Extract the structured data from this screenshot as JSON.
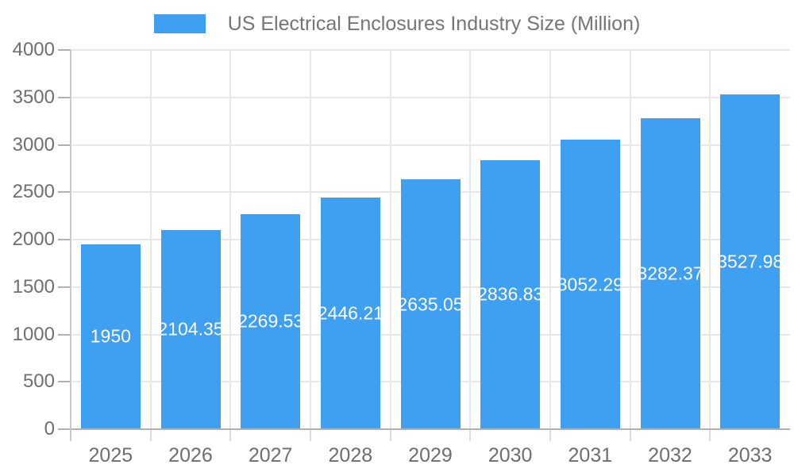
{
  "legend": {
    "series_label": "US Electrical Enclosures Industry Size (Million)"
  },
  "chart_data": {
    "type": "bar",
    "title": "US Electrical Enclosures Industry Size (Million)",
    "categories": [
      "2025",
      "2026",
      "2027",
      "2028",
      "2029",
      "2030",
      "2031",
      "2032",
      "2033"
    ],
    "values": [
      1950,
      2104.35,
      2269.53,
      2446.21,
      2635.05,
      2836.83,
      3052.29,
      3282.37,
      3527.98
    ],
    "bar_labels": [
      "1950",
      "2104.35",
      "2269.53",
      "2446.21",
      "2635.05",
      "2836.83",
      "3052.29",
      "3282.37",
      "3527.98"
    ],
    "xlabel": "",
    "ylabel": "",
    "ylim": [
      0,
      4000
    ],
    "yticks": [
      0,
      500,
      1000,
      1500,
      2000,
      2500,
      3000,
      3500,
      4000
    ],
    "grid": true,
    "legend_position": "top",
    "colors": {
      "bar": "#3F9FF0",
      "bar_label_text": "#FFFFFF",
      "legend_text": "#757575",
      "axis_label_text": "#6E6E6E",
      "gridline": "#E8E8E8",
      "minor_tick": "#DCDCDC",
      "baseline": "#B0B0B0",
      "axis_line": "#C9C9C9",
      "background": "#FFFFFF"
    }
  }
}
